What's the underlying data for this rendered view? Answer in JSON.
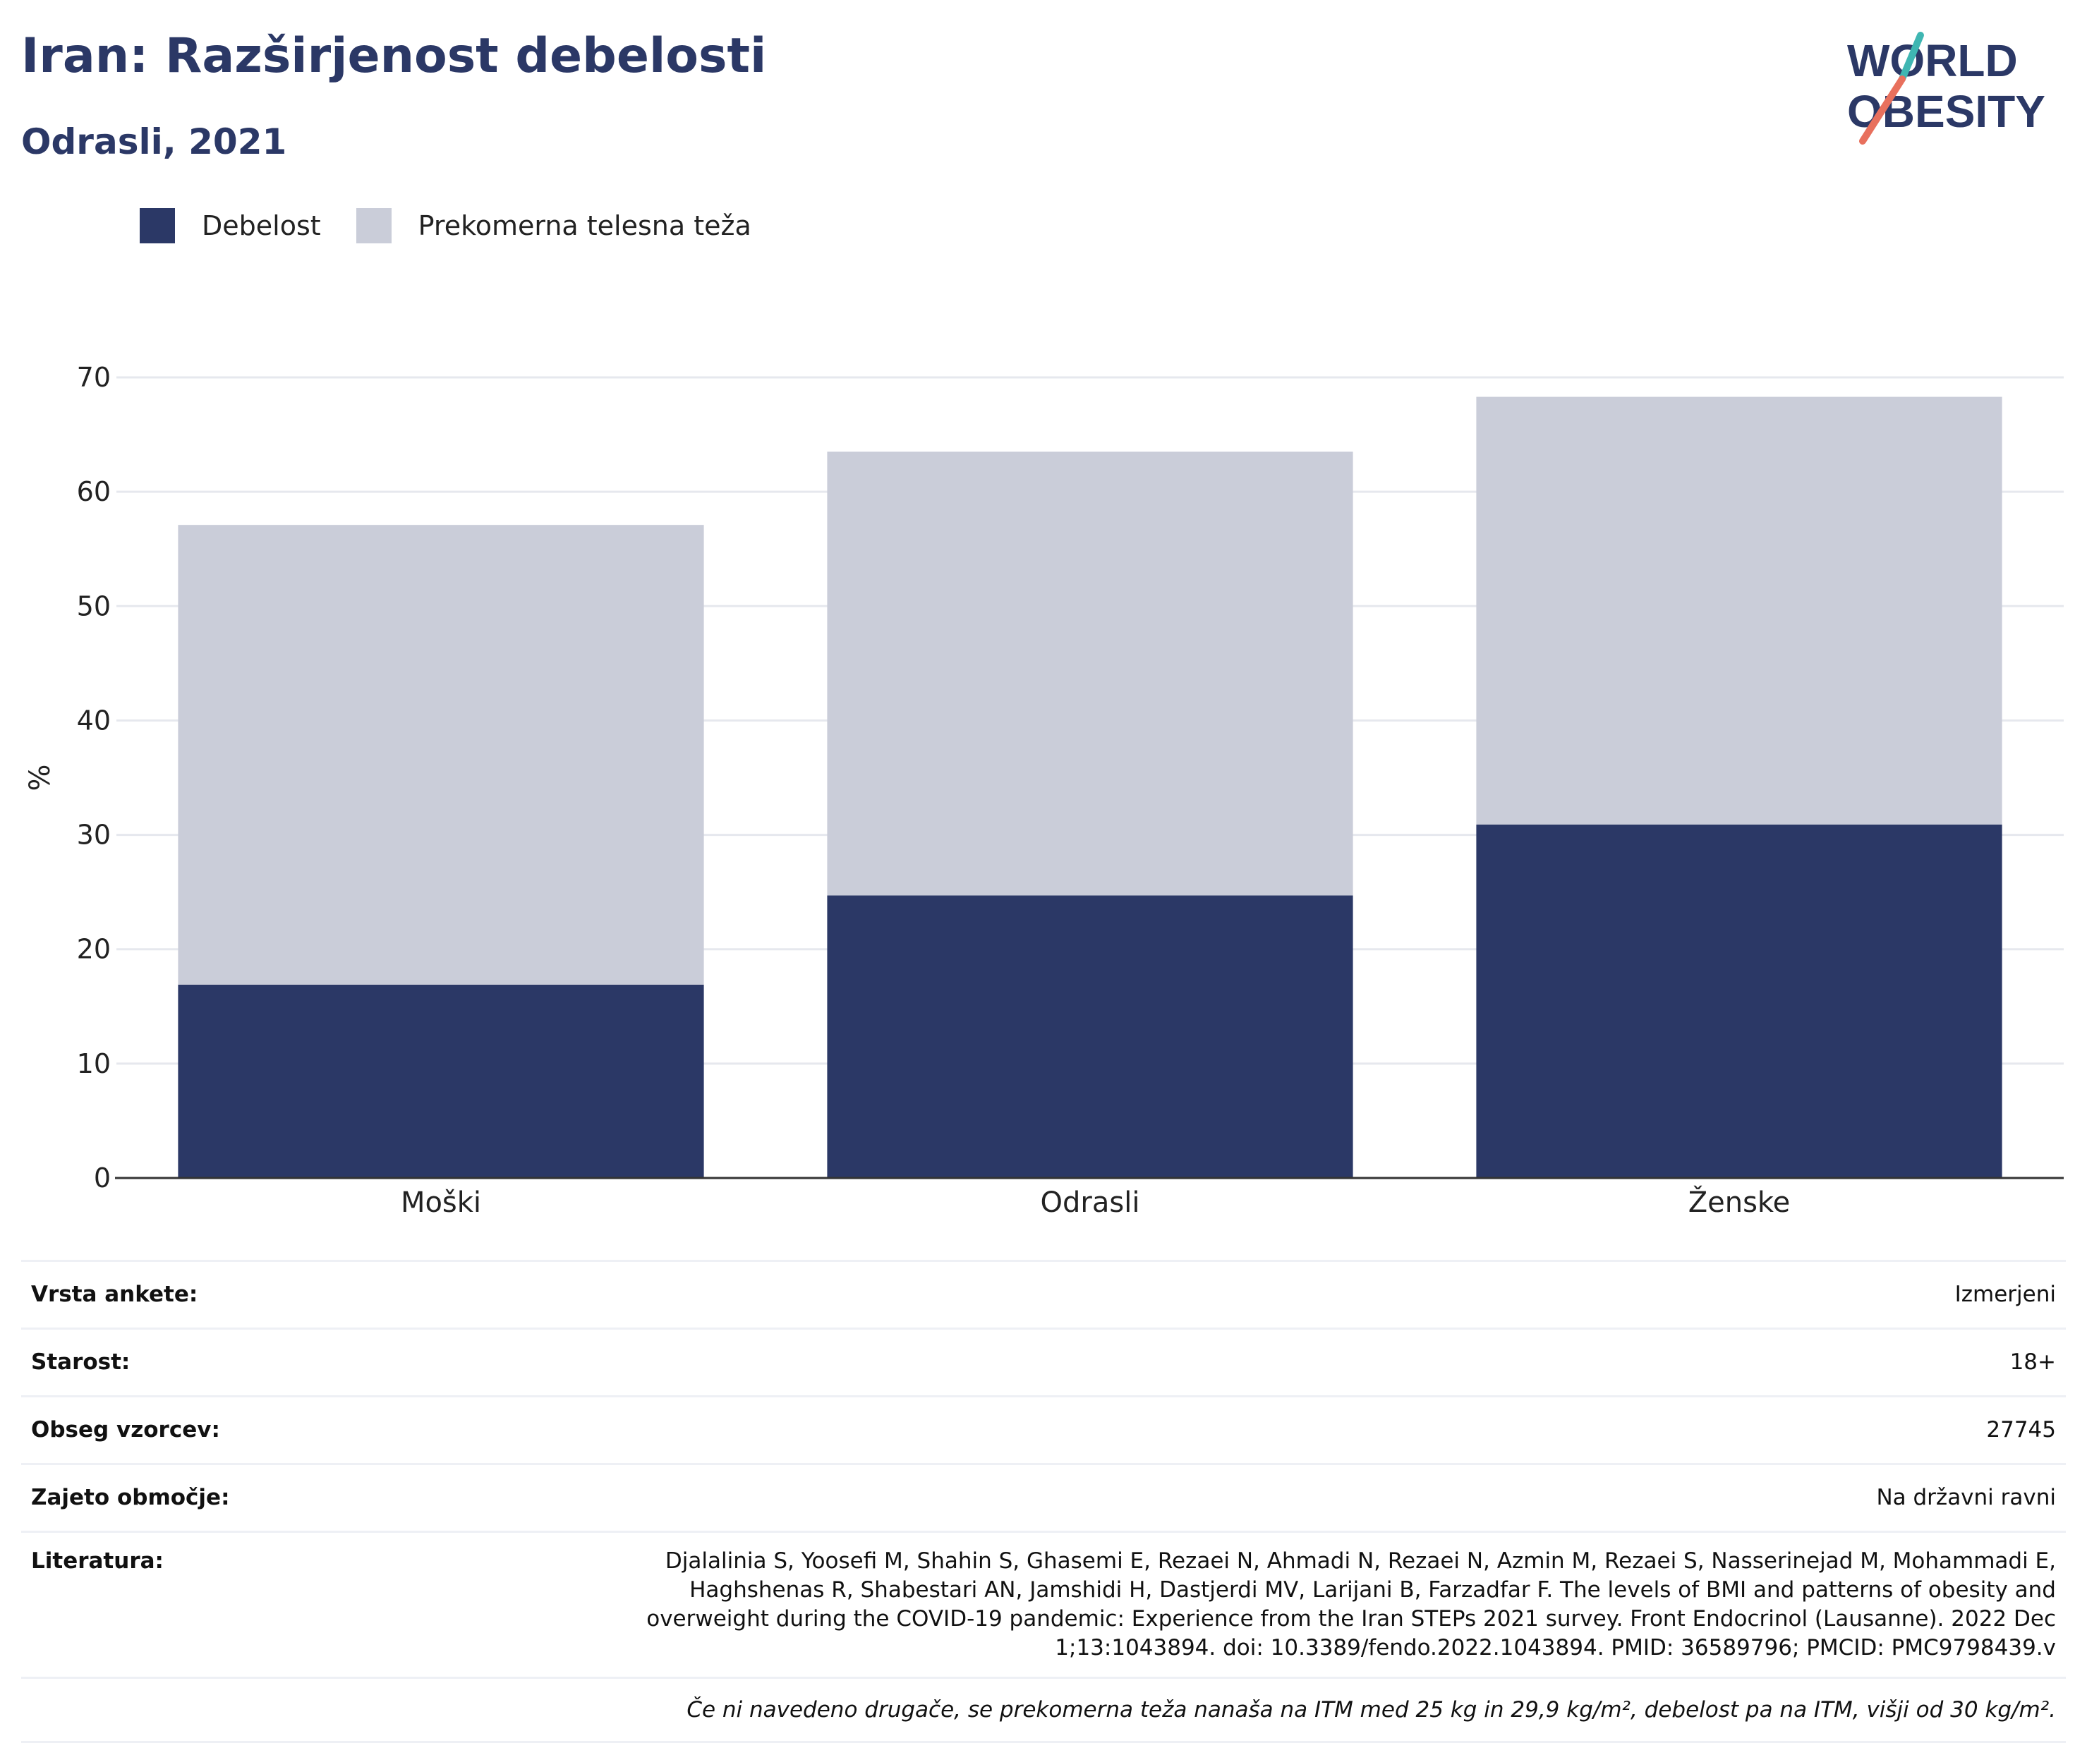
{
  "header": {
    "title": "Iran: Razširjenost debelosti",
    "subtitle": "Odrasli, 2021"
  },
  "logo": {
    "line1": "WORLD",
    "line2": "OBESITY",
    "accent_teal": "#3fb6b2",
    "accent_coral": "#e8705d",
    "text_color": "#2b3866"
  },
  "colors": {
    "obesity": "#2b3866",
    "overweight": "#cacdd9",
    "grid": "#e6e8ee",
    "axis": "#333333"
  },
  "legend": [
    {
      "label": "Debelost",
      "color": "#2b3866"
    },
    {
      "label": "Prekomerna telesna teža",
      "color": "#cacdd9"
    }
  ],
  "chart_data": {
    "type": "bar",
    "stacked": true,
    "categories": [
      "Moški",
      "Odrasli",
      "Ženske"
    ],
    "series": [
      {
        "name": "Debelost",
        "values": [
          16.9,
          24.7,
          30.9
        ]
      },
      {
        "name": "Prekomerna telesna teža",
        "values": [
          40.2,
          38.8,
          37.4
        ]
      }
    ],
    "ylabel": "%",
    "ylim": [
      0,
      70
    ],
    "yticks": [
      0,
      10,
      20,
      30,
      40,
      50,
      60,
      70
    ],
    "grid": true,
    "legend_position": "top-left"
  },
  "info": {
    "rows": [
      {
        "label": "Vrsta ankete:",
        "value": "Izmerjeni"
      },
      {
        "label": "Starost:",
        "value": "18+"
      },
      {
        "label": "Obseg vzorcev:",
        "value": "27745"
      },
      {
        "label": "Zajeto območje:",
        "value": "Na državni ravni"
      }
    ],
    "reference_label": "Literatura:",
    "reference_value": "Djalalinia S, Yoosefi M, Shahin S, Ghasemi E, Rezaei N, Ahmadi N, Rezaei N, Azmin M, Rezaei S, Nasserinejad M, Mohammadi E, Haghshenas R, Shabestari AN, Jamshidi H, Dastjerdi MV, Larijani B, Farzadfar F. The levels of BMI and patterns of obesity and overweight during the COVID-19 pandemic: Experience from the Iran STEPs 2021 survey. Front Endocrinol (Lausanne). 2022 Dec 1;13:1043894. doi: 10.3389/fendo.2022.1043894. PMID: 36589796; PMCID: PMC9798439.v",
    "footnote": "Če ni navedeno drugače, se prekomerna teža nanaša na ITM med 25 kg in 29,9 kg/m², debelost pa na ITM, višji od 30 kg/m²."
  }
}
